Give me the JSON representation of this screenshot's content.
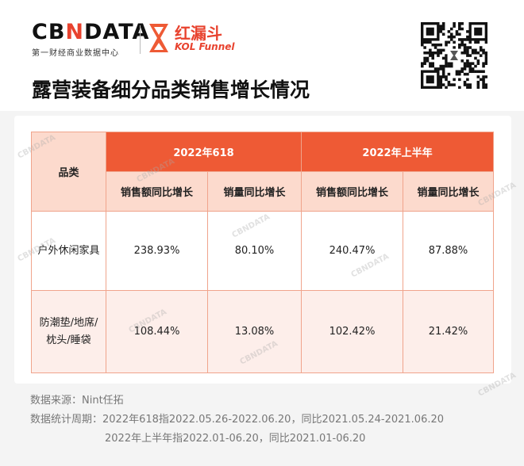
{
  "brand": {
    "cbndata": {
      "prefix": "CB",
      "n": "N",
      "suffix": "DATA",
      "tagline": "第一财经商业数据中心"
    },
    "kol": {
      "cn": "红漏斗",
      "en": "KOL Funnel"
    },
    "accent": "#ee5a35"
  },
  "page_title": "露营装备细分品类销售增长情况",
  "chart_data": {
    "type": "table",
    "title": "露营装备细分品类销售增长情况",
    "category_header": "品类",
    "groups": [
      {
        "label": "2022年618",
        "columns": [
          "销售额同比增长",
          "销量同比增长"
        ]
      },
      {
        "label": "2022年上半年",
        "columns": [
          "销售额同比增长",
          "销量同比增长"
        ]
      }
    ],
    "rows": [
      {
        "category": "户外休闲家具",
        "values": [
          "238.93%",
          "80.10%",
          "240.47%",
          "87.88%"
        ]
      },
      {
        "category": "防潮垫/地席/枕头/睡袋",
        "category_line1": "防潮垫/地席/",
        "category_line2": "枕头/睡袋",
        "values": [
          "108.44%",
          "13.08%",
          "102.42%",
          "21.42%"
        ]
      }
    ]
  },
  "footer": {
    "source": "数据来源：Nint任拓",
    "period_line1": "数据统计周期：2022年618指2022.05.26-2022.06.20，同比2021.05.24-2021.06.20",
    "period_line2": "2022年上半年指2022.01-06.20，同比2021.01-06.20"
  },
  "watermark": "CBNDATA"
}
